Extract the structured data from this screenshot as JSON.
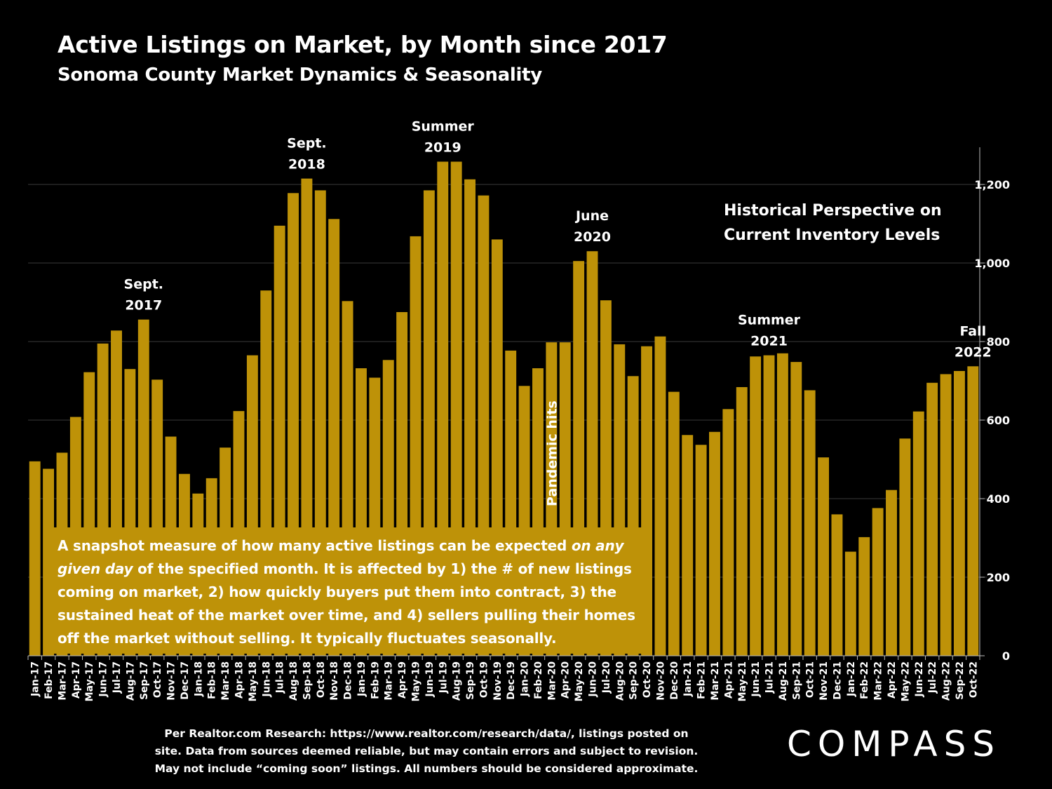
{
  "title": "Active Listings on Market, by Month since 2017",
  "subtitle": "Sonoma County Market Dynamics & Seasonality",
  "perspective_note": {
    "line1": "Historical Perspective on",
    "line2": "Current Inventory Levels"
  },
  "description": {
    "part1": "A snapshot measure of how many active listings can be expected ",
    "italic1": "on any given day",
    "part2": " of the specified month. It is affected by 1) the # of new listings coming on market, 2) how quickly buyers put them into contract, 3) the sustained heat of the market over time, and 4) sellers pulling their homes off the market without selling. It typically fluctuates seasonally."
  },
  "source": {
    "line1": "Per Realtor.com Research:  https://www.realtor.com/research/data/, listings posted on",
    "line2": "site. Data from sources deemed reliable, but may contain errors and subject to revision.",
    "line3": "May not include “coming soon” listings. All numbers should be considered approximate."
  },
  "logo": "COMPASS",
  "colors": {
    "bar": "#be9208",
    "background": "#000000",
    "text": "#ffffff",
    "grid": "#3a3a3a"
  },
  "chart_data": {
    "type": "bar",
    "title": "Active Listings on Market, by Month since 2017",
    "ylabel": "",
    "xlabel": "",
    "ylim": [
      0,
      1300
    ],
    "yticks": [
      0,
      200,
      400,
      600,
      800,
      1000,
      1200
    ],
    "ytick_labels": [
      "0",
      "200",
      "400",
      "600",
      "800",
      "1,000",
      "1,200"
    ],
    "y_axis_position": "right",
    "grid": true,
    "categories": [
      "Jan-17",
      "Feb-17",
      "Mar-17",
      "Apr-17",
      "May-17",
      "Jun-17",
      "Jul-17",
      "Aug-17",
      "Sep-17",
      "Oct-17",
      "Nov-17",
      "Dec-17",
      "Jan-18",
      "Feb-18",
      "Mar-18",
      "Apr-18",
      "May-18",
      "Jun-18",
      "Jul-18",
      "Aug-18",
      "Sep-18",
      "Oct-18",
      "Nov-18",
      "Dec-18",
      "Jan-19",
      "Feb-19",
      "Mar-19",
      "Apr-19",
      "May-19",
      "Jun-19",
      "Jul-19",
      "Aug-19",
      "Sep-19",
      "Oct-19",
      "Nov-19",
      "Dec-19",
      "Jan-20",
      "Feb-20",
      "Mar-20",
      "Apr-20",
      "May-20",
      "Jun-20",
      "Jul-20",
      "Aug-20",
      "Sep-20",
      "Oct-20",
      "Nov-20",
      "Dec-20",
      "Jan-21",
      "Feb-21",
      "Mar-21",
      "Apr-21",
      "May-21",
      "Jun-21",
      "Jul-21",
      "Aug-21",
      "Sep-21",
      "Oct-21",
      "Nov-21",
      "Dec-21",
      "Jan-22",
      "Feb-22",
      "Mar-22",
      "Apr-22",
      "May-22",
      "Jun-22",
      "Jul-22",
      "Aug-22",
      "Sep-22",
      "Oct-22"
    ],
    "values": [
      495,
      476,
      517,
      608,
      722,
      795,
      828,
      730,
      856,
      703,
      558,
      463,
      413,
      452,
      530,
      623,
      765,
      930,
      1095,
      1178,
      1215,
      1185,
      1112,
      903,
      732,
      708,
      753,
      875,
      1068,
      1185,
      1258,
      1258,
      1213,
      1172,
      1060,
      777,
      687,
      732,
      798,
      798,
      1005,
      1030,
      905,
      793,
      712,
      788,
      813,
      672,
      562,
      537,
      570,
      628,
      684,
      762,
      765,
      770,
      748,
      676,
      505,
      360,
      265,
      302,
      376,
      422,
      553,
      622,
      695,
      717,
      725,
      737
    ],
    "annotations": [
      {
        "category": "Sep-17",
        "lines": [
          "Sept.",
          "2017"
        ]
      },
      {
        "category": "Sep-18",
        "lines": [
          "Sept.",
          "2018"
        ]
      },
      {
        "category": "Jul-19",
        "lines": [
          "Summer",
          "2019"
        ]
      },
      {
        "category": "Jun-20",
        "lines": [
          "June",
          "2020"
        ]
      },
      {
        "category": "Jul-21",
        "lines": [
          "Summer",
          "2021"
        ]
      },
      {
        "category": "Oct-22",
        "lines": [
          "Fall",
          "2022"
        ]
      }
    ],
    "pandemic_label": {
      "category": "Mar-20",
      "text": "Pandemic hits"
    }
  }
}
